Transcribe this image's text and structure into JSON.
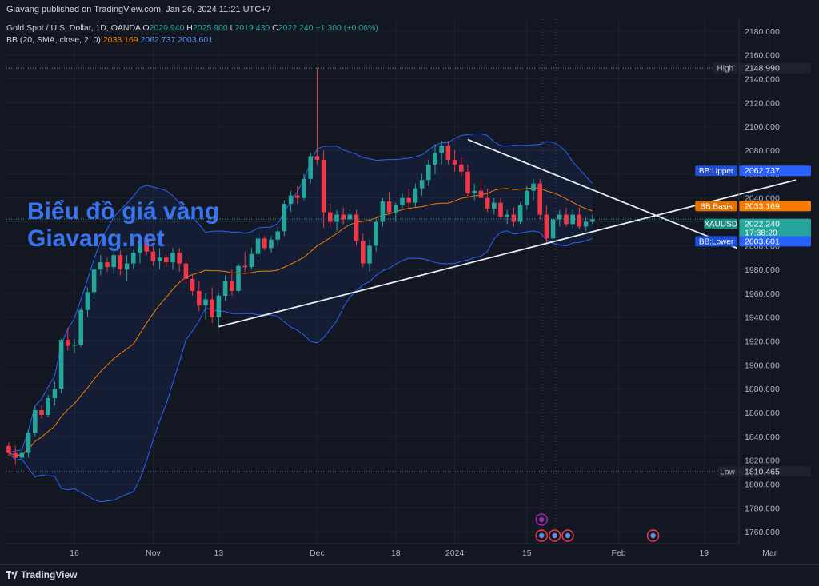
{
  "header": {
    "published_by": "Giavang published on TradingView.com, Jan 26, 2024 11:21 UTC+7"
  },
  "legend": {
    "symbol": "Gold Spot / U.S. Dollar, 1D, OANDA",
    "open_label": "O",
    "open": "2020.940",
    "high_label": "H",
    "high": "2025.900",
    "low_label": "L",
    "low": "2019.430",
    "close_label": "C",
    "close": "2022.240",
    "change": "+1.300 (+0.06%)",
    "bb_label": "BB (20, SMA, close, 2, 0)",
    "bb_basis": "2033.169",
    "bb_upper": "2062.737",
    "bb_lower": "2003.601"
  },
  "watermark": {
    "line1": "Biểu đồ giá vàng",
    "line2": "Giavang.net"
  },
  "footer": {
    "brand": "TradingView"
  },
  "colors": {
    "background": "#131722",
    "up": "#26a69a",
    "down": "#f23645",
    "bb_basis": "#f57c00",
    "bb_band": "#2962ff",
    "trendline": "#e8eef5",
    "grid": "#1e222d"
  },
  "chart_data": {
    "type": "candlestick",
    "ylim": [
      1750,
      2190
    ],
    "y_ticks": [
      "2180.000",
      "2160.000",
      "2140.000",
      "2120.000",
      "2100.000",
      "2080.000",
      "2060.000",
      "2040.000",
      "2020.000",
      "2000.000",
      "1980.000",
      "1960.000",
      "1940.000",
      "1920.000",
      "1900.000",
      "1880.000",
      "1860.000",
      "1840.000",
      "1820.000",
      "1800.000",
      "1780.000",
      "1760.000"
    ],
    "x_ticks": [
      {
        "label": "16",
        "i": 10
      },
      {
        "label": "Nov",
        "i": 22
      },
      {
        "label": "13",
        "i": 32
      },
      {
        "label": "Dec",
        "i": 47
      },
      {
        "label": "18",
        "i": 59
      },
      {
        "label": "2024",
        "i": 68
      },
      {
        "label": "15",
        "i": 79
      },
      {
        "label": "Feb",
        "i": 93
      },
      {
        "label": "19",
        "i": 106
      },
      {
        "label": "Mar",
        "i": 116
      }
    ],
    "price_labels": [
      {
        "name": "High",
        "value": "2148.990",
        "kind": "high"
      },
      {
        "name": "Low",
        "value": "1810.465",
        "kind": "low"
      },
      {
        "name": "BB:Upper",
        "value": "2062.737",
        "kind": "upper"
      },
      {
        "name": "BB:Basis",
        "value": "2033.169",
        "kind": "basis"
      },
      {
        "name": "XAUUSD",
        "value": "2022.240",
        "extra": "17:38:20",
        "kind": "last"
      },
      {
        "name": "BB:Lower",
        "value": "2003.601",
        "kind": "lower"
      }
    ],
    "candles": [
      [
        1832,
        1835,
        1823,
        1826
      ],
      [
        1826,
        1832,
        1816,
        1822
      ],
      [
        1822,
        1830,
        1811,
        1826
      ],
      [
        1826,
        1846,
        1822,
        1843
      ],
      [
        1843,
        1865,
        1840,
        1862
      ],
      [
        1862,
        1866,
        1855,
        1858
      ],
      [
        1858,
        1875,
        1856,
        1872
      ],
      [
        1872,
        1886,
        1866,
        1880
      ],
      [
        1880,
        1922,
        1876,
        1921
      ],
      [
        1921,
        1931,
        1912,
        1916
      ],
      [
        1916,
        1922,
        1910,
        1917
      ],
      [
        1917,
        1948,
        1915,
        1946
      ],
      [
        1946,
        1965,
        1940,
        1961
      ],
      [
        1961,
        1985,
        1955,
        1980
      ],
      [
        1980,
        1992,
        1975,
        1986
      ],
      [
        1986,
        1990,
        1978,
        1982
      ],
      [
        1982,
        1998,
        1976,
        1992
      ],
      [
        1992,
        1996,
        1975,
        1980
      ],
      [
        1980,
        1992,
        1970,
        1985
      ],
      [
        1985,
        1996,
        1980,
        1994
      ],
      [
        1994,
        2008,
        1985,
        2004
      ],
      [
        2004,
        2010,
        1992,
        1995
      ],
      [
        1995,
        2000,
        1983,
        1987
      ],
      [
        1987,
        1998,
        1980,
        1990
      ],
      [
        1990,
        1992,
        1982,
        1986
      ],
      [
        1986,
        1998,
        1980,
        1994
      ],
      [
        1994,
        1998,
        1978,
        1985
      ],
      [
        1985,
        1988,
        1968,
        1972
      ],
      [
        1972,
        1976,
        1958,
        1962
      ],
      [
        1962,
        1970,
        1945,
        1950
      ],
      [
        1950,
        1960,
        1938,
        1955
      ],
      [
        1955,
        1965,
        1935,
        1940
      ],
      [
        1940,
        1960,
        1932,
        1958
      ],
      [
        1958,
        1975,
        1954,
        1970
      ],
      [
        1970,
        1980,
        1958,
        1962
      ],
      [
        1962,
        1985,
        1960,
        1983
      ],
      [
        1983,
        1995,
        1978,
        1982
      ],
      [
        1982,
        1998,
        1980,
        1993
      ],
      [
        1993,
        2010,
        1990,
        2006
      ],
      [
        2006,
        2008,
        1996,
        1998
      ],
      [
        1998,
        2008,
        1994,
        2005
      ],
      [
        2005,
        2016,
        2000,
        2012
      ],
      [
        2012,
        2038,
        2008,
        2035
      ],
      [
        2035,
        2046,
        2028,
        2042
      ],
      [
        2042,
        2050,
        2035,
        2040
      ],
      [
        2040,
        2060,
        2038,
        2056
      ],
      [
        2056,
        2078,
        2052,
        2075
      ],
      [
        2075,
        2148.99,
        2068,
        2072
      ],
      [
        2072,
        2080,
        2015,
        2028
      ],
      [
        2028,
        2035,
        2015,
        2020
      ],
      [
        2020,
        2030,
        2012,
        2026
      ],
      [
        2026,
        2032,
        2018,
        2022
      ],
      [
        2022,
        2030,
        2016,
        2026
      ],
      [
        2026,
        2030,
        2000,
        2004
      ],
      [
        2004,
        2010,
        1982,
        1985
      ],
      [
        1985,
        2005,
        1978,
        2000
      ],
      [
        2000,
        2022,
        1995,
        2020
      ],
      [
        2020,
        2040,
        2016,
        2037
      ],
      [
        2037,
        2045,
        2026,
        2028
      ],
      [
        2028,
        2036,
        2020,
        2034
      ],
      [
        2034,
        2044,
        2030,
        2040
      ],
      [
        2040,
        2048,
        2030,
        2036
      ],
      [
        2036,
        2052,
        2032,
        2048
      ],
      [
        2048,
        2060,
        2042,
        2055
      ],
      [
        2055,
        2072,
        2050,
        2068
      ],
      [
        2068,
        2085,
        2060,
        2078
      ],
      [
        2078,
        2088,
        2068,
        2084
      ],
      [
        2084,
        2088,
        2068,
        2072
      ],
      [
        2072,
        2080,
        2062,
        2068
      ],
      [
        2068,
        2074,
        2058,
        2062
      ],
      [
        2062,
        2068,
        2040,
        2044
      ],
      [
        2044,
        2052,
        2038,
        2046
      ],
      [
        2046,
        2056,
        2042,
        2040
      ],
      [
        2040,
        2048,
        2028,
        2031
      ],
      [
        2031,
        2040,
        2026,
        2036
      ],
      [
        2036,
        2040,
        2022,
        2024
      ],
      [
        2024,
        2030,
        2018,
        2026
      ],
      [
        2026,
        2032,
        2016,
        2020
      ],
      [
        2020,
        2036,
        2018,
        2034
      ],
      [
        2034,
        2050,
        2030,
        2046
      ],
      [
        2046,
        2056,
        2038,
        2052
      ],
      [
        2052,
        2056,
        2022,
        2026
      ],
      [
        2026,
        2034,
        2002,
        2006
      ],
      [
        2006,
        2024,
        2004,
        2022
      ],
      [
        2022,
        2030,
        2016,
        2026
      ],
      [
        2026,
        2032,
        2016,
        2018
      ],
      [
        2018,
        2030,
        2014,
        2026
      ],
      [
        2026,
        2032,
        2014,
        2016
      ],
      [
        2016,
        2024,
        2012,
        2020
      ],
      [
        2020,
        2026,
        2018,
        2022
      ]
    ],
    "trendlines": [
      {
        "name": "support",
        "from": {
          "i": 32,
          "v": 1932
        },
        "to": {
          "i": 120,
          "v": 2055
        }
      },
      {
        "name": "resistance",
        "from": {
          "i": 70,
          "v": 2089
        },
        "to": {
          "i": 111,
          "v": 1998
        }
      }
    ]
  }
}
